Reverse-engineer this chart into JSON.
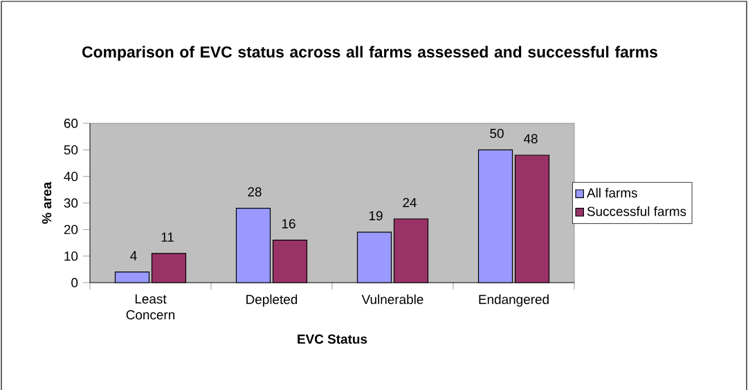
{
  "chart_data": {
    "type": "bar",
    "title": "Comparison of EVC status across all farms assessed and successful farms",
    "xlabel": "EVC Status",
    "ylabel": "% area",
    "categories": [
      "Least Concern",
      "Depleted",
      "Vulnerable",
      "Endangered"
    ],
    "series": [
      {
        "name": "All farms",
        "color": "#9999ff",
        "values": [
          4,
          28,
          19,
          50
        ]
      },
      {
        "name": "Successful farms",
        "color": "#993366",
        "values": [
          11,
          16,
          24,
          48
        ]
      }
    ],
    "ylim": [
      0,
      60
    ],
    "yticks": [
      0,
      10,
      20,
      30,
      40,
      50,
      60
    ],
    "data_labels": true,
    "legend": "right"
  }
}
